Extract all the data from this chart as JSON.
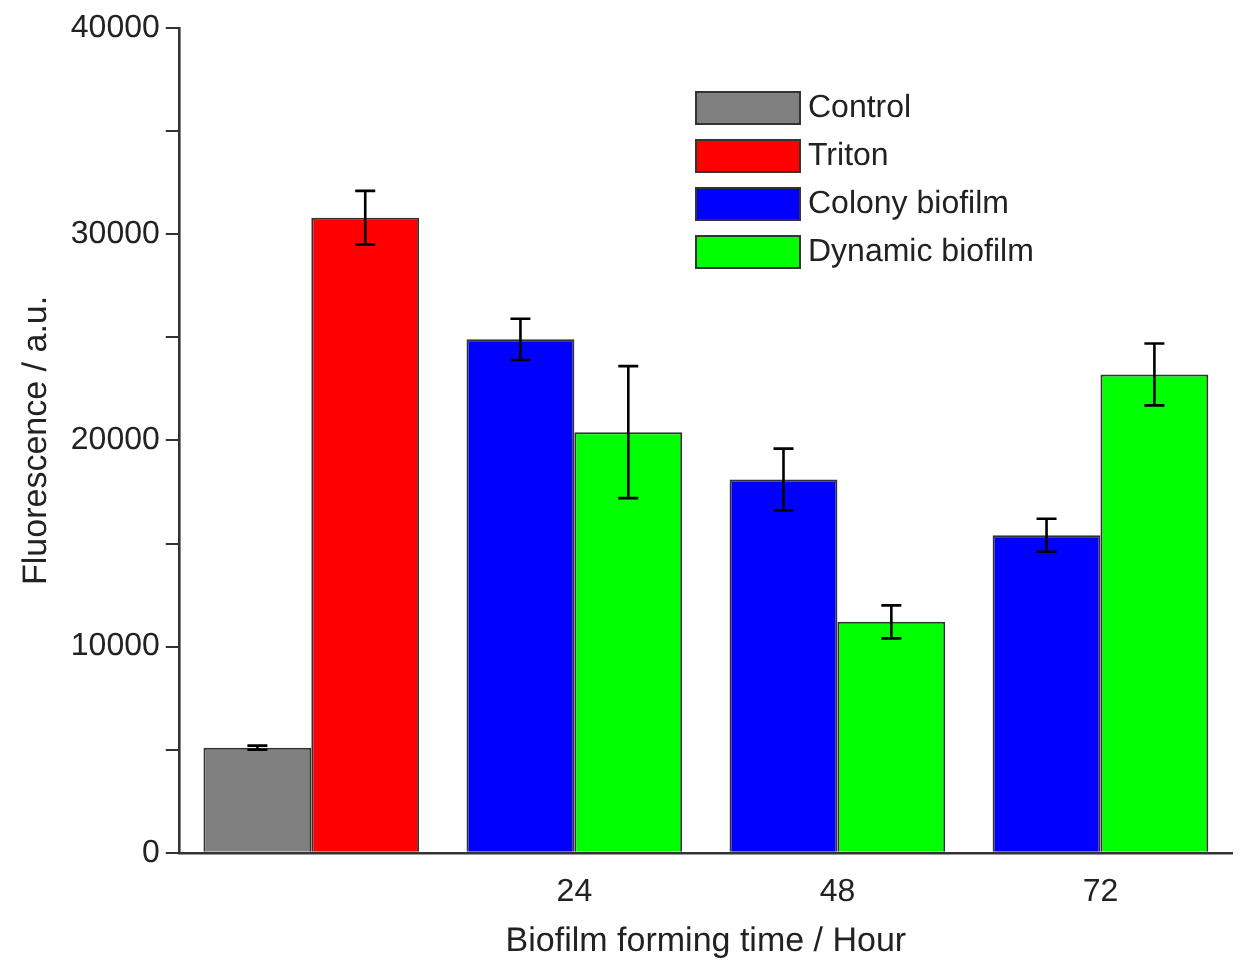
{
  "chart_data": {
    "type": "bar",
    "xlabel": "Biofilm forming time / Hour",
    "ylabel": "Fluorescence / a.u.",
    "categories": [
      null,
      "24",
      "48",
      "72"
    ],
    "series": [
      {
        "name": "Control",
        "color": "#808080",
        "values": [
          5100,
          null,
          null,
          null
        ],
        "errors": [
          100,
          null,
          null,
          null
        ]
      },
      {
        "name": "Triton",
        "color": "#ff0000",
        "values": [
          30800,
          null,
          null,
          null
        ],
        "errors": [
          1300,
          null,
          null,
          null
        ]
      },
      {
        "name": "Colony biofilm",
        "color": "#0000ff",
        "values": [
          null,
          24900,
          18100,
          15400
        ],
        "errors": [
          null,
          1000,
          1500,
          800
        ]
      },
      {
        "name": "Dynamic biofilm",
        "color": "#00ff00",
        "values": [
          null,
          20400,
          11200,
          23200
        ],
        "errors": [
          null,
          3200,
          800,
          1500
        ]
      }
    ],
    "ylim": [
      0,
      40000
    ],
    "yticks": [
      0,
      {
        "value": 5000,
        "label": null
      },
      10000,
      {
        "value": 15000,
        "label": null
      },
      20000,
      {
        "value": 25000,
        "label": null
      },
      30000,
      {
        "value": 35000,
        "label": null
      },
      40000
    ],
    "grid": false,
    "legend": "top right"
  }
}
